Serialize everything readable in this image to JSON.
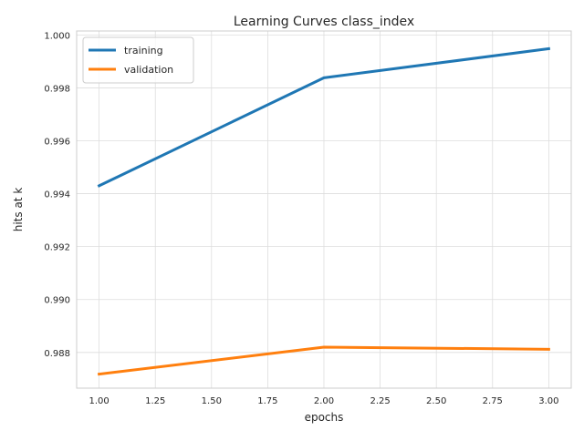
{
  "chart_data": {
    "type": "line",
    "title": "Learning Curves class_index",
    "xlabel": "epochs",
    "ylabel": "hits at k",
    "x": [
      1.0,
      2.0,
      3.0
    ],
    "xlim": [
      0.9,
      3.1
    ],
    "ylim": [
      0.98665,
      1.00015
    ],
    "xticks": [
      "1.00",
      "1.25",
      "1.50",
      "1.75",
      "2.00",
      "2.25",
      "2.50",
      "2.75",
      "3.00"
    ],
    "yticks": [
      "0.988",
      "0.990",
      "0.992",
      "0.994",
      "0.996",
      "0.998",
      "1.000"
    ],
    "grid": true,
    "legend_position": "top-left",
    "series": [
      {
        "name": "training",
        "values": [
          0.9943,
          0.99838,
          0.99948
        ],
        "color": "#1f77b4"
      },
      {
        "name": "validation",
        "values": [
          0.98718,
          0.9882,
          0.98812
        ],
        "color": "#ff7f0e"
      }
    ]
  }
}
